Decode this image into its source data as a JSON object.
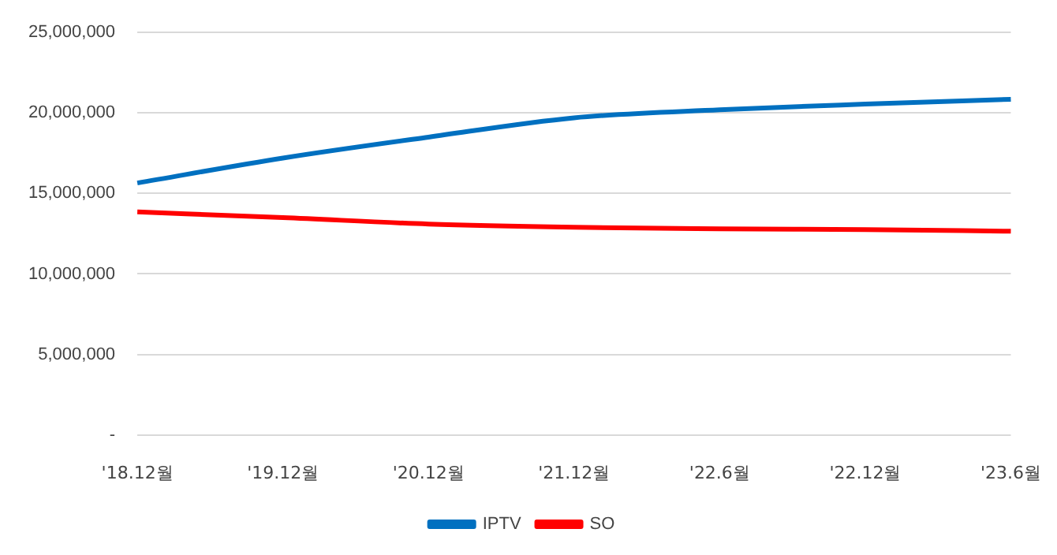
{
  "chart_data": {
    "type": "line",
    "categories": [
      "'18.12월",
      "'19.12월",
      "'20.12월",
      "'21.12월",
      "'22.6월",
      "'22.12월",
      "'23.6월"
    ],
    "series": [
      {
        "name": "IPTV",
        "color": "#0070c0",
        "values": [
          15650000,
          17200000,
          18500000,
          19700000,
          20200000,
          20550000,
          20850000
        ]
      },
      {
        "name": "SO",
        "color": "#ff0000",
        "values": [
          13850000,
          13500000,
          13100000,
          12900000,
          12800000,
          12750000,
          12650000
        ]
      }
    ],
    "ylim": [
      0,
      25000000
    ],
    "yticks": [
      {
        "value": 0,
        "label": "-"
      },
      {
        "value": 5000000,
        "label": "5,000,000"
      },
      {
        "value": 10000000,
        "label": "10,000,000"
      },
      {
        "value": 15000000,
        "label": "15,000,000"
      },
      {
        "value": 20000000,
        "label": "20,000,000"
      },
      {
        "value": 25000000,
        "label": "25,000,000"
      }
    ],
    "grid": "y",
    "legend": "bottom",
    "marker": "none",
    "line_style": "solid"
  }
}
